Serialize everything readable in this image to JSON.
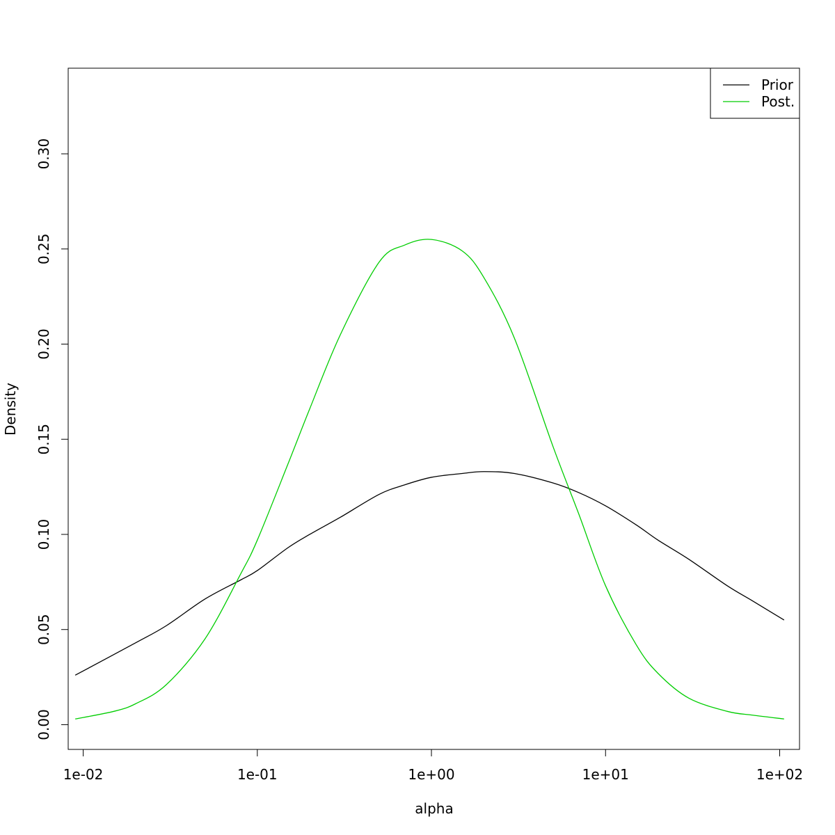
{
  "chart_data": {
    "type": "line",
    "xlabel": "alpha",
    "ylabel": "Density",
    "x_scale": "log",
    "xlim": [
      0.0082,
      130
    ],
    "ylim": [
      -0.013,
      0.345
    ],
    "x_ticks": [
      0.01,
      0.1,
      1,
      10,
      100
    ],
    "x_tick_labels": [
      "1e-02",
      "1e-01",
      "1e+00",
      "1e+01",
      "1e+02"
    ],
    "y_ticks": [
      0.0,
      0.05,
      0.1,
      0.15,
      0.2,
      0.25,
      0.3
    ],
    "y_tick_labels": [
      "0.00",
      "0.05",
      "0.10",
      "0.15",
      "0.20",
      "0.25",
      "0.30"
    ],
    "grid": false,
    "legend_position": "top-right",
    "series": [
      {
        "name": "Prior",
        "color": "#000000",
        "x": [
          0.009,
          0.02,
          0.03,
          0.05,
          0.08,
          0.1,
          0.15,
          0.2,
          0.3,
          0.5,
          0.7,
          1,
          1.5,
          2,
          3,
          5,
          7,
          10,
          15,
          20,
          30,
          50,
          70,
          106
        ],
        "y": [
          0.026,
          0.043,
          0.052,
          0.066,
          0.076,
          0.081,
          0.093,
          0.1,
          0.109,
          0.121,
          0.126,
          0.13,
          0.132,
          0.133,
          0.132,
          0.127,
          0.122,
          0.115,
          0.105,
          0.097,
          0.087,
          0.073,
          0.065,
          0.055
        ]
      },
      {
        "name": "Post.",
        "color": "#00cd00",
        "x": [
          0.009,
          0.015,
          0.02,
          0.03,
          0.05,
          0.08,
          0.1,
          0.15,
          0.2,
          0.3,
          0.5,
          0.7,
          1,
          1.5,
          2,
          3,
          5,
          7,
          10,
          15,
          20,
          30,
          50,
          70,
          106
        ],
        "y": [
          0.003,
          0.007,
          0.011,
          0.021,
          0.045,
          0.079,
          0.097,
          0.137,
          0.166,
          0.205,
          0.243,
          0.252,
          0.255,
          0.249,
          0.235,
          0.203,
          0.146,
          0.111,
          0.073,
          0.042,
          0.027,
          0.014,
          0.007,
          0.005,
          0.003
        ]
      }
    ]
  }
}
